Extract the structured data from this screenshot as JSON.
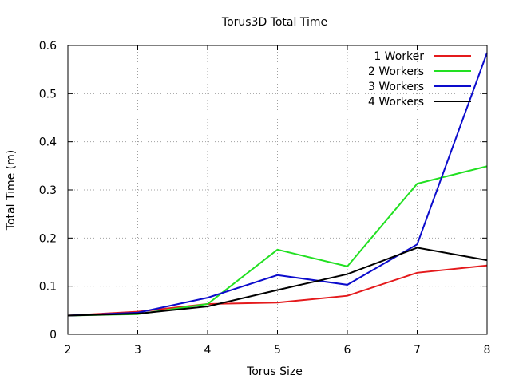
{
  "chart_data": {
    "type": "line",
    "title": "Torus3D Total Time",
    "xlabel": "Torus Size",
    "ylabel": "Total Time (m)",
    "xlim": [
      2,
      8
    ],
    "ylim": [
      0,
      0.6
    ],
    "x_ticks": [
      "2",
      "3",
      "4",
      "5",
      "6",
      "7",
      "8"
    ],
    "y_ticks": [
      "0",
      "0.1",
      "0.2",
      "0.3",
      "0.4",
      "0.5",
      "0.6"
    ],
    "grid": true,
    "legend_position": "top-right",
    "x": [
      2,
      3,
      4,
      5,
      6,
      7,
      8
    ],
    "series": [
      {
        "name": "1 Worker",
        "color": "#e41a1c",
        "values": [
          0.039,
          0.047,
          0.063,
          0.066,
          0.08,
          0.128,
          0.143
        ]
      },
      {
        "name": "2 Workers",
        "color": "#22e022",
        "values": [
          0.039,
          0.042,
          0.063,
          0.176,
          0.141,
          0.313,
          0.349
        ]
      },
      {
        "name": "3 Workers",
        "color": "#0c0ccc",
        "values": [
          0.039,
          0.045,
          0.076,
          0.123,
          0.103,
          0.187,
          0.585
        ]
      },
      {
        "name": "4 Workers",
        "color": "#000000",
        "values": [
          0.039,
          0.043,
          0.058,
          0.092,
          0.125,
          0.18,
          0.154
        ]
      }
    ]
  }
}
